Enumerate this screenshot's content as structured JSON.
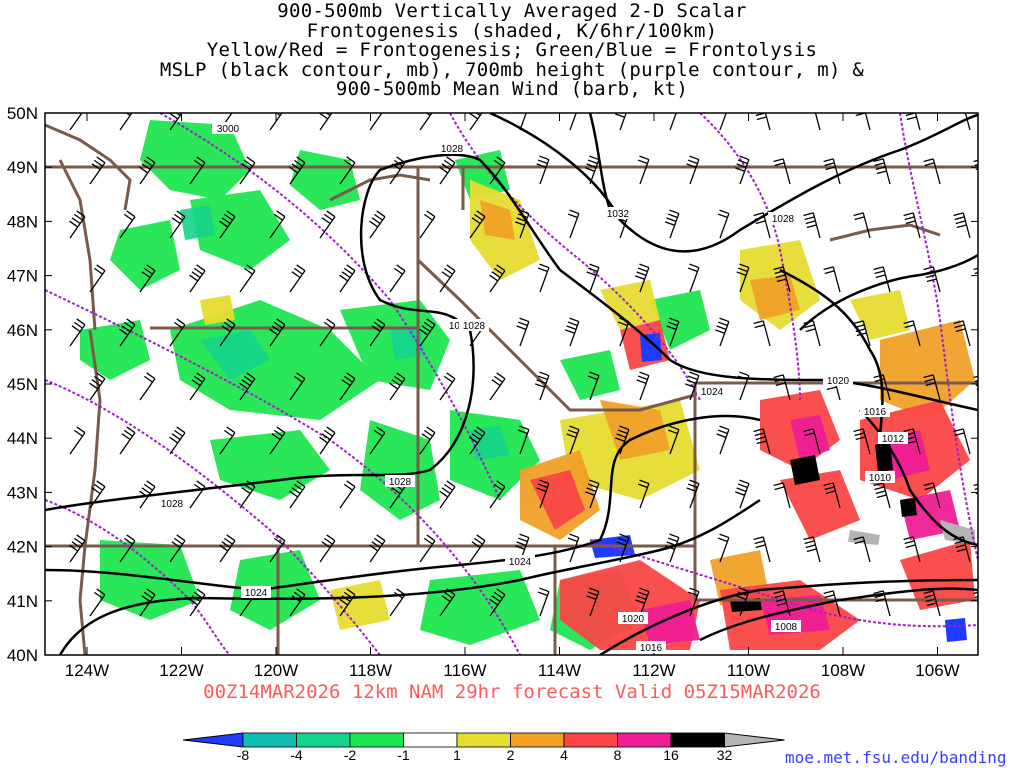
{
  "title_lines": [
    "900-500mb Vertically Averaged 2-D Scalar",
    "Frontogenesis (shaded, K/6hr/100km)",
    "Yellow/Red = Frontogenesis;  Green/Blue = Frontolysis",
    "MSLP (black contour, mb), 700mb height (purple contour, m) &",
    "900-500mb Mean Wind (barb, kt)"
  ],
  "subtitle": "00Z14MAR2026 12km NAM 29hr forecast Valid 05Z15MAR2026",
  "credit": "moe.met.fsu.edu/banding",
  "map": {
    "lat_labels": [
      "50N",
      "49N",
      "48N",
      "47N",
      "46N",
      "45N",
      "44N",
      "43N",
      "42N",
      "41N",
      "40N"
    ],
    "lon_labels": [
      "124W",
      "122W",
      "120W",
      "118W",
      "116W",
      "114W",
      "112W",
      "110W",
      "108W",
      "106W"
    ],
    "mslp_contour_labels": [
      "1028",
      "1032",
      "1028",
      "1028",
      "1028",
      "1024",
      "1020",
      "1016",
      "1012",
      "1010",
      "1028",
      "1028",
      "1024",
      "1024",
      "1020",
      "1016",
      "1008"
    ],
    "height_contour_labels": [
      "3000"
    ]
  },
  "colorbar": {
    "labels": [
      "-8",
      "-4",
      "-2",
      "-1",
      "1",
      "2",
      "4",
      "8",
      "16",
      "32"
    ],
    "colors": [
      "#1e3cff",
      "#0fbcb0",
      "#14d48c",
      "#1ee650",
      "#ffffff",
      "#e6dc32",
      "#f0a028",
      "#fa4646",
      "#f01e96",
      "#000000",
      "#b4b4b4"
    ]
  },
  "legend_colors": {
    "mslp": "#000000",
    "height_700": "#a020c8",
    "borders": "#7a5a4a"
  }
}
